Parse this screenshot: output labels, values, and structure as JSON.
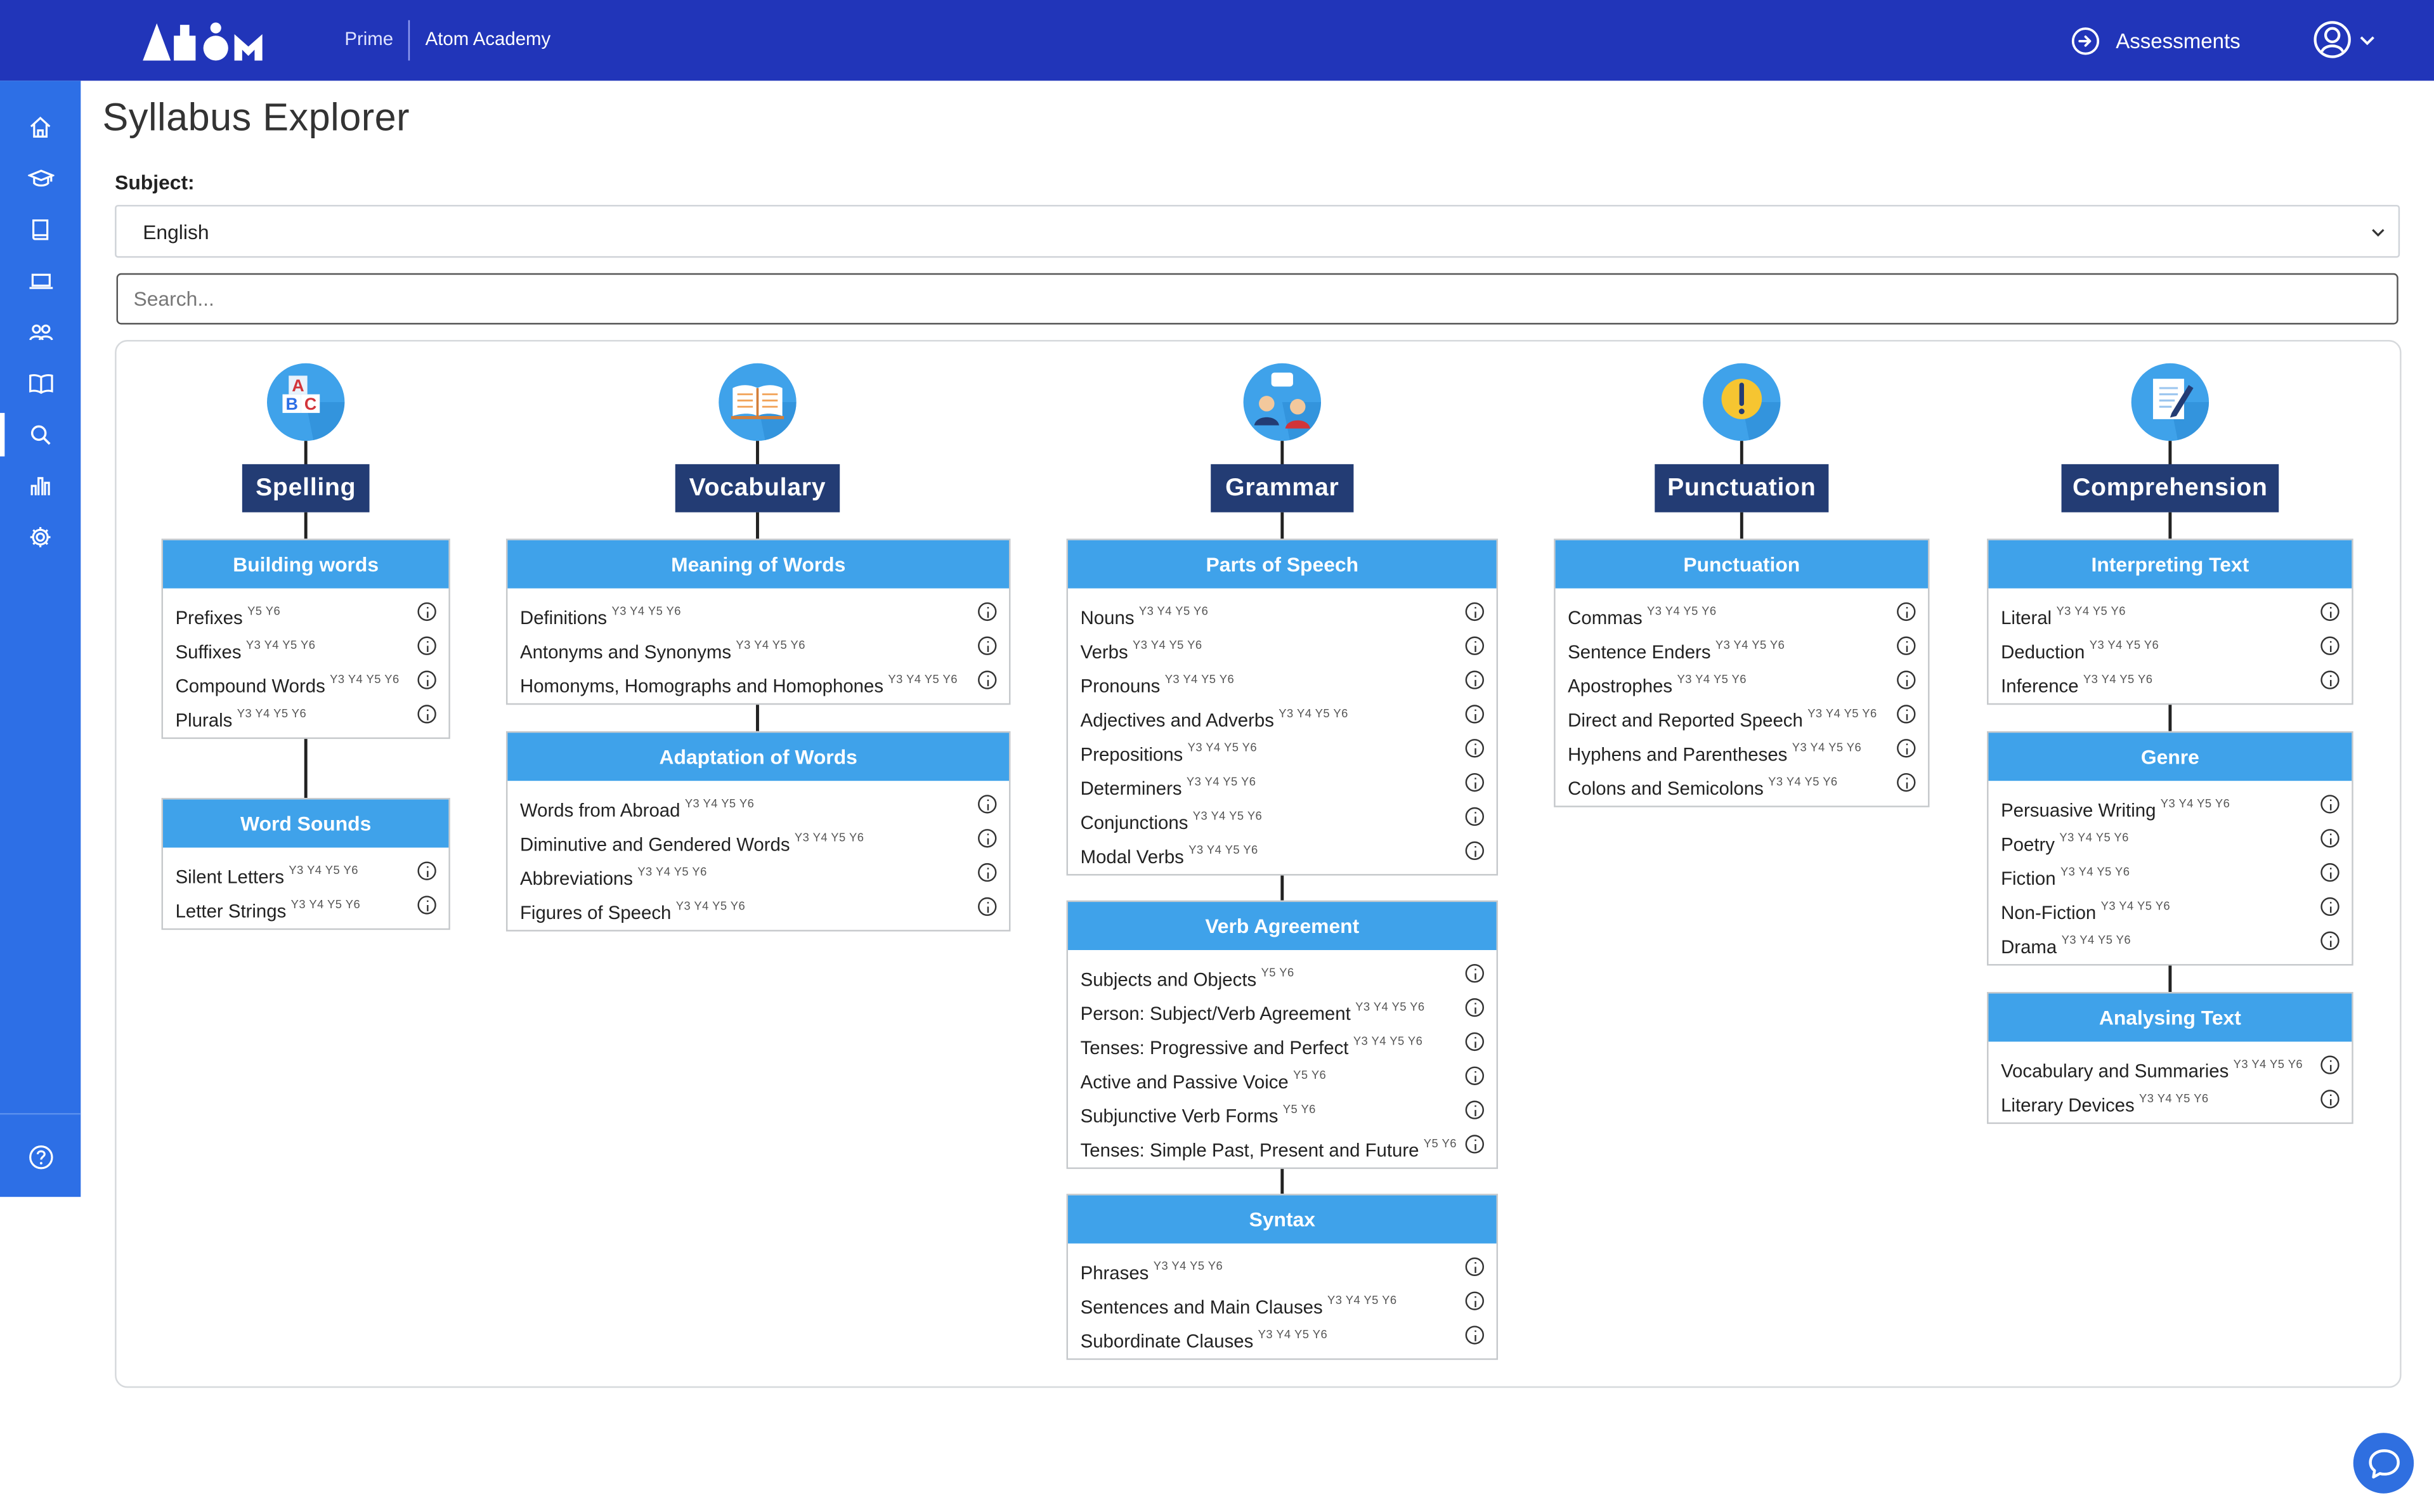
{
  "header": {
    "logo_text": "Atom",
    "nav_prime": "Prime",
    "nav_academy": "Atom Academy",
    "assessments_label": "Assessments",
    "brand_color": "#2135b9"
  },
  "sidebar": {
    "color": "#2d6fe6",
    "items": [
      {
        "icon": "home-icon"
      },
      {
        "icon": "graduation-cap-icon"
      },
      {
        "icon": "book-icon"
      },
      {
        "icon": "laptop-icon"
      },
      {
        "icon": "users-icon"
      },
      {
        "icon": "open-book-icon"
      },
      {
        "icon": "search-icon",
        "active": true
      },
      {
        "icon": "bar-chart-icon"
      },
      {
        "icon": "gear-icon"
      }
    ],
    "footer_icon": "help-icon"
  },
  "page": {
    "title": "Syllabus Explorer",
    "subject_label": "Subject:",
    "subject_value": "English",
    "search_placeholder": "Search..."
  },
  "explorer": {
    "accent_color": "#3fa2ea",
    "category_color": "#233c74",
    "columns": [
      {
        "title": "Spelling",
        "icon": "abc-blocks-icon",
        "groups": [
          {
            "title": "Building words",
            "items": [
              {
                "label": "Prefixes",
                "years": "Y5 Y6"
              },
              {
                "label": "Suffixes",
                "years": "Y3 Y4 Y5 Y6"
              },
              {
                "label": "Compound Words",
                "years": "Y3 Y4 Y5 Y6"
              },
              {
                "label": "Plurals",
                "years": "Y3 Y4 Y5 Y6"
              }
            ]
          },
          {
            "title": "Word Sounds",
            "items": [
              {
                "label": "Silent Letters",
                "years": "Y3 Y4 Y5 Y6"
              },
              {
                "label": "Letter Strings",
                "years": "Y3 Y4 Y5 Y6"
              }
            ]
          }
        ]
      },
      {
        "title": "Vocabulary",
        "icon": "open-book-icon",
        "groups": [
          {
            "title": "Meaning of Words",
            "items": [
              {
                "label": "Definitions",
                "years": "Y3 Y4 Y5 Y6"
              },
              {
                "label": "Antonyms and Synonyms",
                "years": "Y3 Y4 Y5 Y6"
              },
              {
                "label": "Homonyms, Homographs and Homophones",
                "years": "Y3 Y4 Y5 Y6"
              }
            ]
          },
          {
            "title": "Adaptation of Words",
            "items": [
              {
                "label": "Words from Abroad",
                "years": "Y3 Y4 Y5 Y6"
              },
              {
                "label": "Diminutive and Gendered Words",
                "years": "Y3 Y4 Y5 Y6"
              },
              {
                "label": "Abbreviations",
                "years": "Y3 Y4 Y5 Y6"
              },
              {
                "label": "Figures of Speech",
                "years": "Y3 Y4 Y5 Y6"
              }
            ]
          }
        ]
      },
      {
        "title": "Grammar",
        "icon": "people-speech-icon",
        "groups": [
          {
            "title": "Parts of Speech",
            "items": [
              {
                "label": "Nouns",
                "years": "Y3 Y4 Y5 Y6"
              },
              {
                "label": "Verbs",
                "years": "Y3 Y4 Y5 Y6"
              },
              {
                "label": "Pronouns",
                "years": "Y3 Y4 Y5 Y6"
              },
              {
                "label": "Adjectives and Adverbs",
                "years": "Y3 Y4 Y5 Y6"
              },
              {
                "label": "Prepositions",
                "years": "Y3 Y4 Y5 Y6"
              },
              {
                "label": "Determiners",
                "years": "Y3 Y4 Y5 Y6"
              },
              {
                "label": "Conjunctions",
                "years": "Y3 Y4 Y5 Y6"
              },
              {
                "label": "Modal Verbs",
                "years": "Y3 Y4 Y5 Y6"
              }
            ]
          },
          {
            "title": "Verb Agreement",
            "items": [
              {
                "label": "Subjects and Objects",
                "years": "Y5 Y6"
              },
              {
                "label": "Person: Subject/Verb Agreement",
                "years": "Y3 Y4 Y5 Y6"
              },
              {
                "label": "Tenses: Progressive and Perfect",
                "years": "Y3 Y4 Y5 Y6"
              },
              {
                "label": "Active and Passive Voice",
                "years": "Y5 Y6"
              },
              {
                "label": "Subjunctive Verb Forms",
                "years": "Y5 Y6"
              },
              {
                "label": "Tenses: Simple Past, Present and Future",
                "years": "Y5 Y6"
              }
            ]
          },
          {
            "title": "Syntax",
            "items": [
              {
                "label": "Phrases",
                "years": "Y3 Y4 Y5 Y6"
              },
              {
                "label": "Sentences and Main Clauses",
                "years": "Y3 Y4 Y5 Y6"
              },
              {
                "label": "Subordinate Clauses",
                "years": "Y3 Y4 Y5 Y6"
              }
            ]
          }
        ]
      },
      {
        "title": "Punctuation",
        "icon": "exclamation-bubble-icon",
        "groups": [
          {
            "title": "Punctuation",
            "items": [
              {
                "label": "Commas",
                "years": "Y3 Y4 Y5 Y6"
              },
              {
                "label": "Sentence Enders",
                "years": "Y3 Y4 Y5 Y6"
              },
              {
                "label": "Apostrophes",
                "years": "Y3 Y4 Y5 Y6"
              },
              {
                "label": "Direct and Reported Speech",
                "years": "Y3 Y4 Y5 Y6"
              },
              {
                "label": "Hyphens and Parentheses",
                "years": "Y3 Y4 Y5 Y6"
              },
              {
                "label": "Colons and Semicolons",
                "years": "Y3 Y4 Y5 Y6"
              }
            ]
          }
        ]
      },
      {
        "title": "Comprehension",
        "icon": "document-pencil-icon",
        "groups": [
          {
            "title": "Interpreting Text",
            "items": [
              {
                "label": "Literal",
                "years": "Y3 Y4 Y5 Y6"
              },
              {
                "label": "Deduction",
                "years": "Y3 Y4 Y5 Y6"
              },
              {
                "label": "Inference",
                "years": "Y3 Y4 Y5 Y6"
              }
            ]
          },
          {
            "title": "Genre",
            "items": [
              {
                "label": "Persuasive Writing",
                "years": "Y3 Y4 Y5 Y6"
              },
              {
                "label": "Poetry",
                "years": "Y3 Y4 Y5 Y6"
              },
              {
                "label": "Fiction",
                "years": "Y3 Y4 Y5 Y6"
              },
              {
                "label": "Non-Fiction",
                "years": "Y3 Y4 Y5 Y6"
              },
              {
                "label": "Drama",
                "years": "Y3 Y4 Y5 Y6"
              }
            ]
          },
          {
            "title": "Analysing Text",
            "items": [
              {
                "label": "Vocabulary and Summaries",
                "years": "Y3 Y4 Y5 Y6"
              },
              {
                "label": "Literary Devices",
                "years": "Y3 Y4 Y5 Y6"
              }
            ]
          }
        ]
      }
    ]
  }
}
